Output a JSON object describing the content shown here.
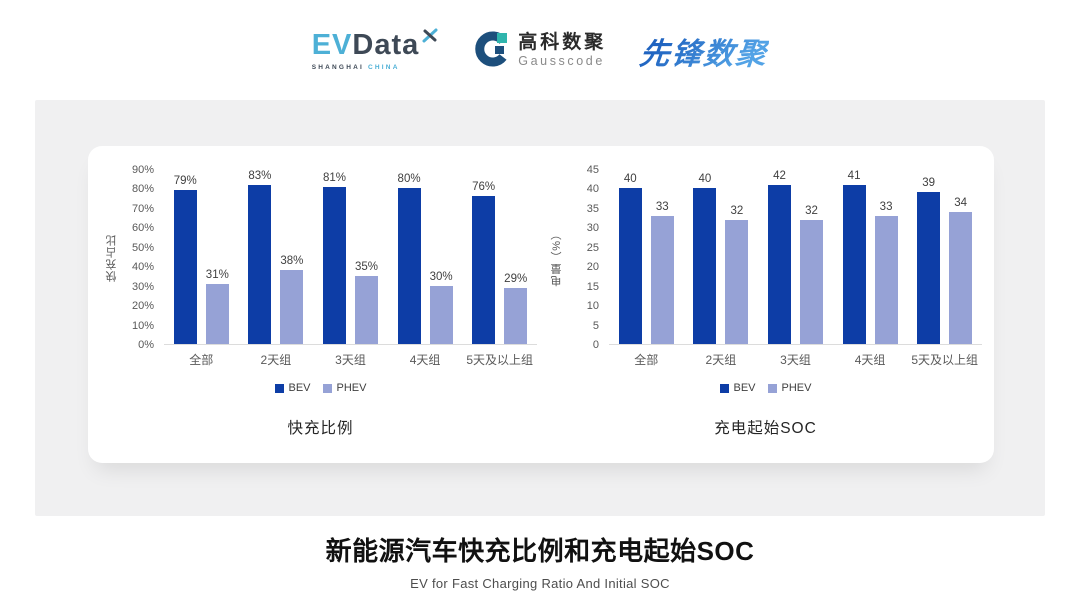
{
  "header": {
    "evdata": {
      "ev": "EV",
      "data": "Data",
      "sub1": "SHANGHAI",
      "sub2": "CHINA"
    },
    "gausscode": {
      "cn": "高科数聚",
      "en": "Gausscode"
    },
    "pioneer": {
      "text": "先锋数聚"
    }
  },
  "colors": {
    "bev": "#0d3da6",
    "phev": "#96a2d6",
    "panel_bg": "#f0f0f1",
    "card_bg": "#ffffff",
    "evdata_blue": "#4db0d6",
    "evdata_dark": "#3e4956",
    "gauss_navy": "#1d4f7c",
    "gauss_teal": "#2fb5ad",
    "pioneer_blue": "#2e7fd0"
  },
  "chart_data": [
    {
      "type": "bar",
      "title": "快充比例",
      "xlabel": "",
      "ylabel": "快充占比",
      "categories": [
        "全部",
        "2天组",
        "3天组",
        "4天组",
        "5天及以上组"
      ],
      "series": [
        {
          "name": "BEV",
          "color": "#0d3da6",
          "values": [
            79,
            83,
            81,
            80,
            76
          ],
          "labels": [
            "79%",
            "83%",
            "81%",
            "80%",
            "76%"
          ]
        },
        {
          "name": "PHEV",
          "color": "#96a2d6",
          "values": [
            31,
            38,
            35,
            30,
            29
          ],
          "labels": [
            "31%",
            "38%",
            "35%",
            "30%",
            "29%"
          ]
        }
      ],
      "ylim": [
        0,
        90
      ],
      "yticks": [
        {
          "value": 0,
          "label": "0%"
        },
        {
          "value": 10,
          "label": "10%"
        },
        {
          "value": 20,
          "label": "20%"
        },
        {
          "value": 30,
          "label": "30%"
        },
        {
          "value": 40,
          "label": "40%"
        },
        {
          "value": 50,
          "label": "50%"
        },
        {
          "value": 60,
          "label": "60%"
        },
        {
          "value": 70,
          "label": "70%"
        },
        {
          "value": 80,
          "label": "80%"
        },
        {
          "value": 90,
          "label": "90%"
        }
      ],
      "grid": false,
      "legend_position": "bottom"
    },
    {
      "type": "bar",
      "title": "充电起始SOC",
      "xlabel": "",
      "ylabel": "电量（%）",
      "categories": [
        "全部",
        "2天组",
        "3天组",
        "4天组",
        "5天及以上组"
      ],
      "series": [
        {
          "name": "BEV",
          "color": "#0d3da6",
          "values": [
            40,
            40,
            42,
            41,
            39
          ],
          "labels": [
            "40",
            "40",
            "42",
            "41",
            "39"
          ]
        },
        {
          "name": "PHEV",
          "color": "#96a2d6",
          "values": [
            33,
            32,
            32,
            33,
            34
          ],
          "labels": [
            "33",
            "32",
            "32",
            "33",
            "34"
          ]
        }
      ],
      "ylim": [
        0,
        45
      ],
      "yticks": [
        {
          "value": 0,
          "label": "0"
        },
        {
          "value": 5,
          "label": "5"
        },
        {
          "value": 10,
          "label": "10"
        },
        {
          "value": 15,
          "label": "15"
        },
        {
          "value": 20,
          "label": "20"
        },
        {
          "value": 25,
          "label": "25"
        },
        {
          "value": 30,
          "label": "30"
        },
        {
          "value": 35,
          "label": "35"
        },
        {
          "value": 40,
          "label": "40"
        },
        {
          "value": 45,
          "label": "45"
        }
      ],
      "grid": false,
      "legend_position": "bottom"
    }
  ],
  "footer": {
    "title": "新能源汽车快充比例和充电起始SOC",
    "subtitle": "EV for Fast Charging Ratio And Initial SOC"
  }
}
